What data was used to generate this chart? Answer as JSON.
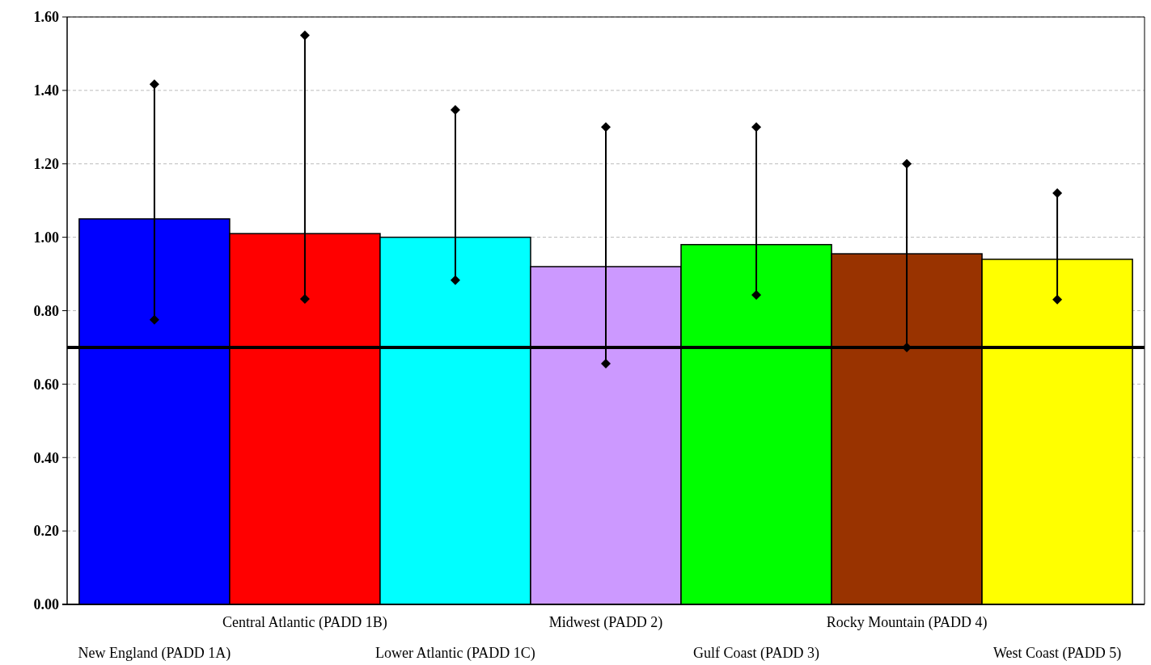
{
  "chart_data": {
    "type": "bar",
    "categories": [
      "New England (PADD 1A)",
      "Central Atlantic (PADD 1B)",
      "Lower Atlantic (PADD 1C)",
      "Midwest (PADD 2)",
      "Gulf Coast (PADD 3)",
      "Rocky Mountain (PADD 4)",
      "West Coast (PADD 5)"
    ],
    "series": [
      {
        "values": [
          1.05,
          1.01,
          1.0,
          0.92,
          0.98,
          0.955,
          0.94
        ],
        "colors": [
          "#0000ff",
          "#ff0000",
          "#00ffff",
          "#cc99ff",
          "#00ff00",
          "#993300",
          "#ffff00"
        ]
      },
      {
        "type": "scatter",
        "x": [
          "New England (PADD 1A)",
          "Central Atlantic (PADD 1B)",
          "Lower Atlantic (PADD 1C)",
          "Midwest (PADD 2)",
          "Gulf Coast (PADD 3)",
          "Rocky Mountain (PADD 4)",
          "West Coast (PADD 5)"
        ],
        "values": [
          0.775,
          0.832,
          0.883,
          0.656,
          0.843,
          0.7,
          0.83
        ],
        "color": "#000000"
      },
      {
        "type": "scatter",
        "x": [
          "New England (PADD 1A)",
          "Central Atlantic (PADD 1B)",
          "Lower Atlantic (PADD 1C)",
          "Midwest (PADD 2)",
          "Gulf Coast (PADD 3)",
          "Rocky Mountain (PADD 4)",
          "West Coast (PADD 5)"
        ],
        "values": [
          1.417,
          1.55,
          1.347,
          1.3,
          1.3,
          1.2,
          1.12
        ],
        "color": "#000000"
      }
    ],
    "marker": "diamond",
    "ylim": [
      0,
      1.6
    ],
    "yticks": [
      {
        "value": 0,
        "label": "0.00"
      },
      {
        "value": 0.2,
        "label": "0.20"
      },
      {
        "value": 0.4,
        "label": "0.40"
      },
      {
        "value": 0.6,
        "label": "0.60"
      },
      {
        "value": 0.8,
        "label": "0.80"
      },
      {
        "value": 1,
        "label": "1.00"
      },
      {
        "value": 1.2,
        "label": "1.20"
      },
      {
        "value": 1.4,
        "label": "1.40"
      },
      {
        "value": 1.6,
        "label": "1.60"
      }
    ],
    "grid": "y",
    "ref_lines": [
      {
        "axis": "y",
        "value": 0.7,
        "color": "#000000"
      }
    ]
  }
}
